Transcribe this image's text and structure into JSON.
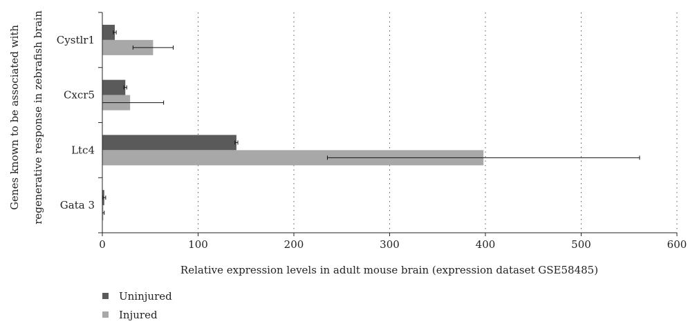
{
  "chart_data": {
    "type": "bar",
    "orientation": "horizontal",
    "categories": [
      "Cystlr1",
      "Cxcr5",
      "Ltc4",
      "Gata 3"
    ],
    "series": [
      {
        "name": "Uninjured",
        "color": "#5a5a5a",
        "values": [
          13,
          24,
          140,
          2
        ],
        "errors": [
          1.5,
          1.5,
          1.5,
          1.5
        ]
      },
      {
        "name": "Injured",
        "color": "#a8a8a8",
        "values": [
          53,
          29,
          398,
          1
        ],
        "errors": [
          21,
          35,
          163,
          1
        ]
      }
    ],
    "xlabel": "Relative expression levels in adult mouse brain (expression dataset GSE58485)",
    "ylabel_lines": [
      "Genes known to be associated with",
      "regenerative response in zebrafish brain"
    ],
    "xlim": [
      0,
      600
    ],
    "xticks": [
      "0",
      "100",
      "200",
      "300",
      "400",
      "500",
      "600"
    ],
    "grid": "vertical dotted",
    "legend_position": "bottom-left"
  }
}
